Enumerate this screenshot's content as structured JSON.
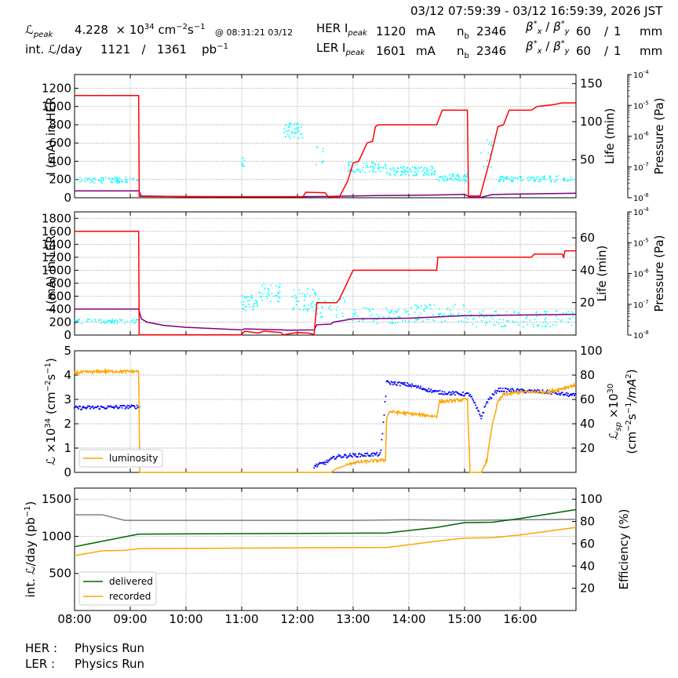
{
  "header": {
    "time_range": "03/12 07:59:39 - 03/12 16:59:39, 2026 JST",
    "lpeak_label": "peak",
    "lpeak_value": "4.228",
    "lpeak_exp": "34",
    "lpeak_units": "cm",
    "lpeak_units2": "s",
    "lpeak_at": "@ 08:31:21 03/12",
    "intl_label": "int.",
    "intl_label2": "/day",
    "intl_value1": "1121",
    "intl_sep": "/",
    "intl_value2": "1361",
    "intl_units": "pb",
    "her_label": "HER I",
    "her_peak": "peak",
    "her_value": "1120",
    "her_units": "mA",
    "ler_label": "LER I",
    "ler_peak": "peak",
    "ler_value": "1601",
    "ler_units": "mA",
    "nb_label": "n",
    "nb_sub": "b",
    "her_nb": "2346",
    "ler_nb": "2346",
    "beta_label": "β",
    "her_beta_x": "60",
    "her_beta_y": "1",
    "ler_beta_x": "60",
    "ler_beta_y": "1",
    "beta_units": "mm"
  },
  "footer": {
    "her_label": "HER :",
    "her_status": "Physics Run",
    "ler_label": "LER :",
    "ler_status": "Physics Run"
  },
  "colors": {
    "current": "#ff0000",
    "lifetime": "#00ffff",
    "pressure": "#800080",
    "luminosity": "#ffa500",
    "specific": "#0000ff",
    "delivered": "#006400",
    "recorded": "#ffa500",
    "efficiency": "#808080"
  },
  "chart_data": [
    {
      "type": "line",
      "panel": "HER",
      "ylabel": "I (mA) in HER",
      "y2label": "Life (min)",
      "y3label": "Pressure (Pa)",
      "ylim": [
        0,
        1350
      ],
      "yticks": [
        0,
        200,
        400,
        600,
        800,
        1000,
        1200
      ],
      "y2lim": [
        0,
        162
      ],
      "y2ticks": [
        50,
        100,
        150
      ],
      "series": [
        {
          "name": "current",
          "points": [
            [
              8.0,
              1120
            ],
            [
              9.15,
              1120
            ],
            [
              9.16,
              15
            ],
            [
              12.1,
              10
            ],
            [
              12.15,
              60
            ],
            [
              12.5,
              55
            ],
            [
              12.55,
              10
            ],
            [
              12.75,
              5
            ],
            [
              12.9,
              180
            ],
            [
              13.0,
              380
            ],
            [
              13.1,
              400
            ],
            [
              13.25,
              600
            ],
            [
              13.35,
              620
            ],
            [
              13.4,
              780
            ],
            [
              13.45,
              800
            ],
            [
              14.5,
              800
            ],
            [
              14.6,
              960
            ],
            [
              15.05,
              960
            ],
            [
              15.07,
              20
            ],
            [
              15.28,
              20
            ],
            [
              15.45,
              400
            ],
            [
              15.6,
              780
            ],
            [
              15.7,
              800
            ],
            [
              15.8,
              960
            ],
            [
              16.2,
              960
            ],
            [
              16.3,
              1000
            ],
            [
              16.6,
              1020
            ],
            [
              16.75,
              1040
            ],
            [
              17.0,
              1040
            ]
          ]
        },
        {
          "name": "pressure",
          "points": [
            [
              8.0,
              75
            ],
            [
              9.15,
              75
            ],
            [
              9.2,
              20
            ],
            [
              10.0,
              12
            ],
            [
              11.0,
              10
            ],
            [
              12.0,
              12
            ],
            [
              12.5,
              14
            ],
            [
              12.6,
              15
            ],
            [
              13.0,
              20
            ],
            [
              13.5,
              25
            ],
            [
              14.0,
              27
            ],
            [
              14.5,
              30
            ],
            [
              15.0,
              38
            ],
            [
              15.1,
              5
            ],
            [
              15.3,
              5
            ],
            [
              15.5,
              35
            ],
            [
              16.0,
              40
            ],
            [
              17.0,
              50
            ]
          ]
        }
      ]
    },
    {
      "type": "line",
      "panel": "LER",
      "ylabel": "I (mA) in LER",
      "y2label": "Life (min)",
      "y3label": "Pressure (Pa)",
      "ylim": [
        0,
        1900
      ],
      "yticks": [
        0,
        200,
        400,
        600,
        800,
        1000,
        1200,
        1400,
        1600,
        1800
      ],
      "y2lim": [
        0,
        76
      ],
      "y2ticks": [
        20,
        40,
        60
      ],
      "series": [
        {
          "name": "current",
          "points": [
            [
              8.0,
              1600
            ],
            [
              9.15,
              1600
            ],
            [
              9.16,
              5
            ],
            [
              11.0,
              5
            ],
            [
              11.05,
              60
            ],
            [
              11.3,
              30
            ],
            [
              11.4,
              60
            ],
            [
              11.7,
              40
            ],
            [
              11.75,
              5
            ],
            [
              12.0,
              40
            ],
            [
              12.2,
              30
            ],
            [
              12.3,
              10
            ],
            [
              12.35,
              500
            ],
            [
              12.7,
              500
            ],
            [
              12.75,
              550
            ],
            [
              13.0,
              1000
            ],
            [
              14.5,
              1000
            ],
            [
              14.52,
              1200
            ],
            [
              16.2,
              1200
            ],
            [
              16.25,
              1250
            ],
            [
              16.75,
              1250
            ],
            [
              16.78,
              1200
            ],
            [
              16.8,
              1300
            ],
            [
              17.0,
              1300
            ]
          ]
        },
        {
          "name": "pressure",
          "points": [
            [
              8.0,
              400
            ],
            [
              9.15,
              400
            ],
            [
              9.2,
              250
            ],
            [
              9.3,
              200
            ],
            [
              9.6,
              150
            ],
            [
              10.0,
              120
            ],
            [
              10.5,
              100
            ],
            [
              11.0,
              80
            ],
            [
              11.05,
              95
            ],
            [
              11.75,
              80
            ],
            [
              11.8,
              75
            ],
            [
              12.3,
              80
            ],
            [
              12.35,
              160
            ],
            [
              12.6,
              170
            ],
            [
              12.65,
              200
            ],
            [
              13.0,
              250
            ],
            [
              14.0,
              260
            ],
            [
              14.5,
              280
            ],
            [
              15.0,
              300
            ],
            [
              17.0,
              320
            ]
          ]
        }
      ]
    },
    {
      "type": "line",
      "panel": "Luminosity",
      "ylabel": "L ×10^34 (cm^-2 s^-1)",
      "y2label": "L_sp ×10^30 (cm^-2 s^-1 / mA^2)",
      "ylim": [
        0,
        5
      ],
      "yticks": [
        0,
        1,
        2,
        3,
        4,
        5
      ],
      "y2lim": [
        0,
        100
      ],
      "y2ticks": [
        20,
        40,
        60,
        80,
        100
      ],
      "legend": "lower-left",
      "series": [
        {
          "name": "luminosity",
          "points": [
            [
              8.0,
              4.1
            ],
            [
              8.5,
              4.15
            ],
            [
              9.15,
              4.15
            ],
            [
              9.17,
              0
            ],
            [
              12.6,
              0
            ],
            [
              12.7,
              0.15
            ],
            [
              13.0,
              0.4
            ],
            [
              13.5,
              0.5
            ],
            [
              13.58,
              0.5
            ],
            [
              13.6,
              2.2
            ],
            [
              13.65,
              2.5
            ],
            [
              14.5,
              2.3
            ],
            [
              14.55,
              2.9
            ],
            [
              15.05,
              3.0
            ],
            [
              15.1,
              0
            ],
            [
              15.3,
              0
            ],
            [
              15.4,
              0.5
            ],
            [
              15.5,
              2.0
            ],
            [
              15.6,
              2.9
            ],
            [
              15.7,
              3.2
            ],
            [
              16.0,
              3.3
            ],
            [
              16.5,
              3.3
            ],
            [
              17.0,
              3.6
            ]
          ]
        },
        {
          "name": "specific",
          "points": [
            [
              8.0,
              53
            ],
            [
              9.15,
              54
            ],
            [
              12.3,
              5
            ],
            [
              12.5,
              8
            ],
            [
              12.7,
              13
            ],
            [
              13.0,
              14
            ],
            [
              13.5,
              15
            ],
            [
              13.6,
              74
            ],
            [
              14.0,
              72
            ],
            [
              14.5,
              66
            ],
            [
              15.1,
              64
            ],
            [
              15.3,
              45
            ],
            [
              15.4,
              58
            ],
            [
              15.6,
              68
            ],
            [
              16.5,
              66
            ],
            [
              17.0,
              63
            ]
          ]
        }
      ]
    },
    {
      "type": "line",
      "panel": "Integrated",
      "ylabel": "int. L/day (pb^-1)",
      "y2label": "Efficiency (%)",
      "ylim": [
        0,
        1650
      ],
      "yticks": [
        500,
        1000,
        1500
      ],
      "y2lim": [
        0,
        110
      ],
      "y2ticks": [
        20,
        40,
        60,
        80,
        100
      ],
      "xlim": [
        8,
        17
      ],
      "xticks": [
        "08:00",
        "09:00",
        "10:00",
        "11:00",
        "12:00",
        "13:00",
        "14:00",
        "15:00",
        "16:00"
      ],
      "legend": "lower-left",
      "series": [
        {
          "name": "delivered",
          "points": [
            [
              8.0,
              860
            ],
            [
              9.15,
              1030
            ],
            [
              13.6,
              1045
            ],
            [
              14.5,
              1120
            ],
            [
              15.0,
              1185
            ],
            [
              15.5,
              1190
            ],
            [
              16.0,
              1240
            ],
            [
              17.0,
              1360
            ]
          ]
        },
        {
          "name": "recorded",
          "points": [
            [
              8.0,
              740
            ],
            [
              8.5,
              805
            ],
            [
              8.9,
              810
            ],
            [
              9.15,
              835
            ],
            [
              13.6,
              850
            ],
            [
              14.0,
              885
            ],
            [
              14.5,
              935
            ],
            [
              15.0,
              975
            ],
            [
              15.5,
              980
            ],
            [
              16.0,
              1020
            ],
            [
              17.0,
              1120
            ]
          ]
        },
        {
          "name": "efficiency",
          "points": [
            [
              8.0,
              86
            ],
            [
              8.5,
              86
            ],
            [
              8.9,
              81
            ],
            [
              13.0,
              81
            ],
            [
              14.0,
              81.5
            ],
            [
              15.0,
              81
            ],
            [
              16.0,
              81.5
            ],
            [
              17.0,
              82
            ]
          ]
        }
      ]
    }
  ]
}
